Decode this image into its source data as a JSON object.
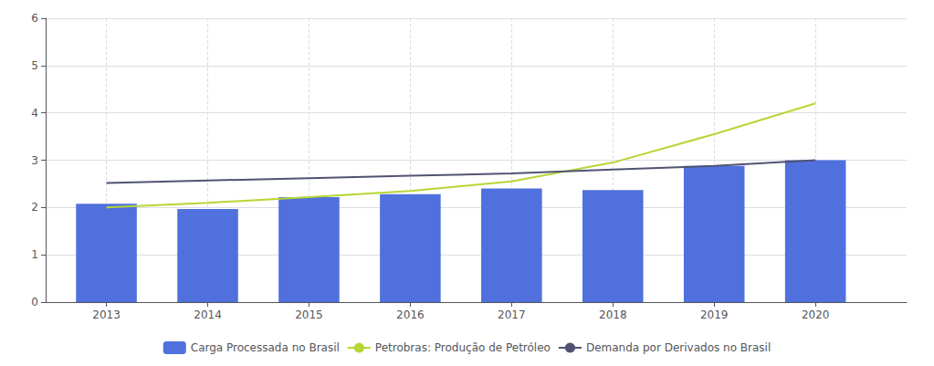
{
  "chart_data": {
    "type": "bar",
    "x": [
      2013,
      2014,
      2015,
      2016,
      2017,
      2018,
      2019,
      2020
    ],
    "xlim": [
      2012.4,
      2020.9
    ],
    "xticks": [
      2013,
      2014,
      2015,
      2016,
      2017,
      2018,
      2019,
      2020
    ],
    "ylim": [
      0,
      6
    ],
    "yticks": [
      0,
      1,
      2,
      3,
      4,
      5,
      6
    ],
    "grid": true,
    "legend": "bottom",
    "series": [
      {
        "name": "Carga Processada no Brasil",
        "type": "bar",
        "values": [
          2.08,
          1.97,
          2.22,
          2.28,
          2.4,
          2.37,
          2.88,
          3.0
        ]
      },
      {
        "name": "Petrobras: Produção de Petróleo",
        "type": "line",
        "values": [
          2.0,
          2.1,
          2.22,
          2.35,
          2.55,
          2.95,
          3.55,
          4.2
        ]
      },
      {
        "name": "Demanda por Derivados no Brasil",
        "type": "line",
        "values": [
          2.52,
          2.57,
          2.62,
          2.67,
          2.72,
          2.8,
          2.88,
          3.0
        ]
      }
    ]
  }
}
